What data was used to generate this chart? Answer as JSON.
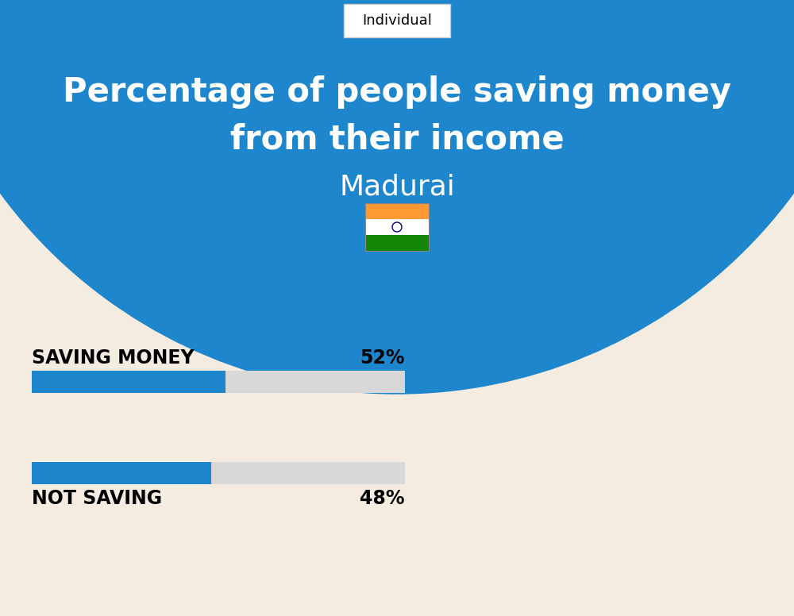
{
  "title_line1": "Percentage of people saving money",
  "title_line2": "from their income",
  "city": "Madurai",
  "tab_label": "Individual",
  "bg_color": "#f5ece1",
  "circle_color": "#1e86cc",
  "bar_blue": "#1e86cc",
  "bar_gray": "#d8d8d8",
  "categories": [
    "SAVING MONEY",
    "NOT SAVING"
  ],
  "values": [
    52,
    48
  ],
  "label_fontsize": 17,
  "pct_fontsize": 17,
  "title_fontsize": 30,
  "city_fontsize": 26,
  "tab_fontsize": 13,
  "india_flag_colors": [
    "#FF9933",
    "#FFFFFF",
    "#138808"
  ],
  "title_color": "#FFFFFF",
  "city_color": "#FFFFFF",
  "label_color": "#000000",
  "tab_border_color": "#cccccc",
  "fig_width": 10.0,
  "fig_height": 7.76
}
